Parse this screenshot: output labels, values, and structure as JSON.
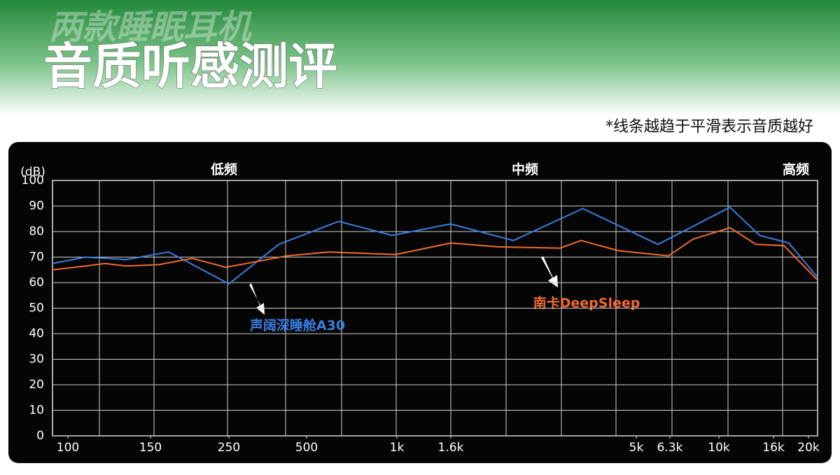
{
  "header": {
    "subtitle": "两款睡眠耳机",
    "title": "音质听感测评",
    "note": "*线条越趋于平滑表示音质越好"
  },
  "chart_data": {
    "type": "line",
    "y_label": "(dB)",
    "bands": [
      "低频",
      "中频",
      "高频"
    ],
    "xscale": "log",
    "xlim": [
      93,
      21200
    ],
    "xticks": [
      100,
      150,
      250,
      500,
      {
        "value": 1000,
        "label": "1k"
      },
      {
        "value": 1600,
        "label": "1.6k"
      },
      {
        "value": 5000,
        "label": "5k"
      },
      {
        "value": 6300,
        "label": "6.3k"
      },
      {
        "value": 10000,
        "label": "10k"
      },
      {
        "value": 16000,
        "label": "16k"
      },
      {
        "value": 20000,
        "label": "20k"
      }
    ],
    "ylim": [
      0,
      100
    ],
    "yticks": [
      0,
      10,
      20,
      30,
      40,
      50,
      60,
      70,
      80,
      90,
      100
    ],
    "grid": true,
    "series": [
      {
        "name": "声阔深睡舱A30",
        "color": "#3a7de0",
        "x": [
          93,
          109,
          133,
          169,
          250,
          390,
          640,
          963,
          1600,
          2350,
          3600,
          5800,
          11000,
          14200,
          17650,
          21200
        ],
        "values": [
          67.5,
          70,
          69,
          72,
          59.5,
          75,
          84,
          78.5,
          83,
          76.5,
          89,
          75,
          89.5,
          78.5,
          75.5,
          62
        ]
      },
      {
        "name": "南卡DeepSleep",
        "color": "#f06a30",
        "x": [
          93,
          109,
          120,
          133,
          158,
          197,
          245,
          420,
          594,
          990,
          1600,
          2140,
          3130,
          3560,
          4480,
          6240,
          7830,
          11000,
          13760,
          17100,
          21200
        ],
        "values": [
          65,
          66.5,
          67.5,
          66.5,
          67,
          69.5,
          66,
          70.5,
          72,
          71,
          75.5,
          74,
          73.5,
          76.5,
          72.5,
          70.5,
          77,
          81.5,
          75,
          74.5,
          61
        ]
      }
    ]
  }
}
